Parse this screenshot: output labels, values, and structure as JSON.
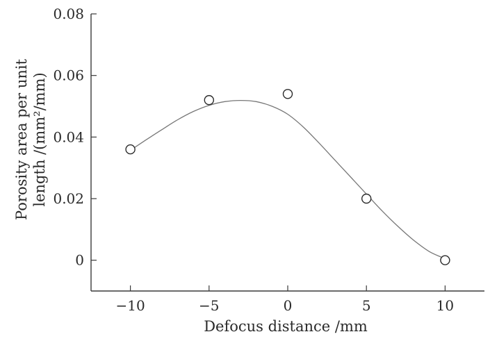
{
  "chart_data": {
    "type": "scatter",
    "xlabel": "Defocus distance /mm",
    "ylabel_line1": "Porosity area per unit",
    "ylabel_line2": "length /(mm²/mm)",
    "xlim": [
      -12.5,
      12.5
    ],
    "ylim": [
      -0.01,
      0.08
    ],
    "x_ticks": [
      -10,
      -5,
      0,
      5,
      10
    ],
    "x_tick_labels": [
      "−10",
      "−5",
      "0",
      "5",
      "10"
    ],
    "y_ticks": [
      0,
      0.02,
      0.04,
      0.06,
      0.08
    ],
    "y_tick_labels": [
      "0",
      "0.02",
      "0.04",
      "0.06",
      "0.08"
    ],
    "series": [
      {
        "marker": "open-circle",
        "x": [
          -10,
          -5,
          0,
          5,
          10
        ],
        "y": [
          0.036,
          0.052,
          0.054,
          0.02,
          0.0
        ]
      }
    ],
    "fit_curve": {
      "x": [
        -10,
        -9,
        -8,
        -7,
        -6,
        -5,
        -4,
        -3,
        -2,
        -1,
        0,
        1,
        2,
        3,
        4,
        5,
        6,
        7,
        8,
        9,
        10
      ],
      "y": [
        0.0357,
        0.0391,
        0.0424,
        0.0456,
        0.0483,
        0.0503,
        0.0515,
        0.0519,
        0.0515,
        0.05,
        0.0474,
        0.0432,
        0.038,
        0.0325,
        0.027,
        0.0215,
        0.016,
        0.011,
        0.0065,
        0.0028,
        0.0005
      ]
    },
    "grid": false,
    "legend": "none"
  }
}
